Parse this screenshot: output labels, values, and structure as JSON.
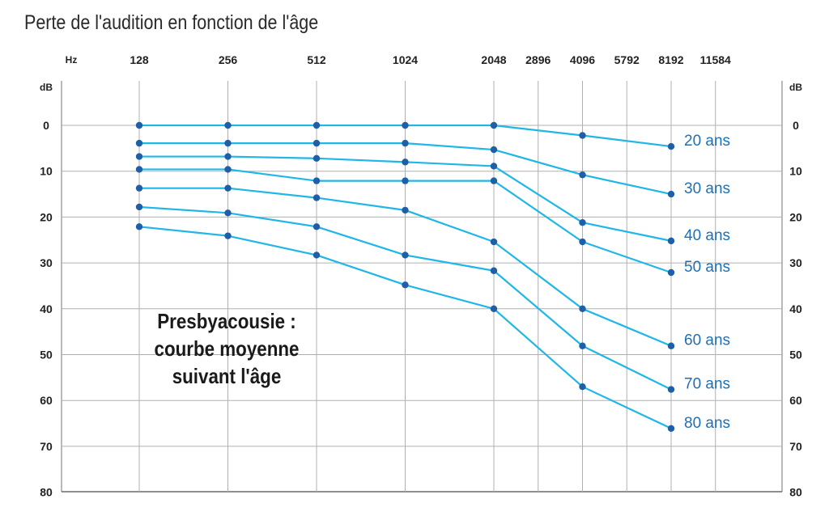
{
  "chart_data": {
    "type": "line",
    "title": "Perte de l'audition en fonction de l'âge",
    "x_unit": "Hz",
    "y_unit": "dB",
    "x": [
      128,
      256,
      512,
      1024,
      2048,
      2896,
      4096,
      5792,
      8192,
      11584
    ],
    "x_tick_labels": [
      "128",
      "256",
      "512",
      "1024",
      "2048",
      "2896",
      "4096",
      "5792",
      "8192",
      "11584"
    ],
    "y_ticks": [
      0,
      10,
      20,
      30,
      40,
      50,
      60,
      70,
      80
    ],
    "ylim": [
      80,
      -5
    ],
    "y_reversed": true,
    "x_scale": "log",
    "grid": true,
    "line_color": "#1fb6e8",
    "point_color": "#1f5fa8",
    "label_color": "#1f6fb5",
    "series": [
      {
        "name": "20 ans",
        "x": [
          128,
          256,
          512,
          1024,
          2048,
          4096,
          8192
        ],
        "values": [
          0,
          0,
          0,
          0,
          0,
          2.2,
          4.6
        ]
      },
      {
        "name": "30 ans",
        "x": [
          128,
          256,
          512,
          1024,
          2048,
          4096,
          8192
        ],
        "values": [
          3.9,
          3.9,
          3.9,
          3.9,
          5.3,
          10.8,
          15
        ]
      },
      {
        "name": "40 ans",
        "x": [
          128,
          256,
          512,
          1024,
          2048,
          4096,
          8192
        ],
        "values": [
          6.8,
          6.8,
          7.2,
          8,
          8.9,
          21.2,
          25.2
        ]
      },
      {
        "name": "50 ans",
        "x": [
          128,
          256,
          512,
          1024,
          2048,
          4096,
          8192
        ],
        "values": [
          9.6,
          9.6,
          12.1,
          12.1,
          12.1,
          25.4,
          32.1
        ]
      },
      {
        "name": "60 ans",
        "x": [
          128,
          256,
          512,
          1024,
          2048,
          4096,
          8192
        ],
        "values": [
          13.7,
          13.7,
          15.8,
          18.5,
          25.4,
          40,
          48.1
        ]
      },
      {
        "name": "70 ans",
        "x": [
          128,
          256,
          512,
          1024,
          2048,
          4096,
          8192
        ],
        "values": [
          17.8,
          19.1,
          22.1,
          28.3,
          31.7,
          48.1,
          57.6
        ]
      },
      {
        "name": "80 ans",
        "x": [
          128,
          256,
          512,
          1024,
          2048,
          4096,
          8192
        ],
        "values": [
          22.1,
          24.1,
          28.3,
          34.8,
          40,
          57,
          66.1
        ]
      }
    ]
  },
  "annotation": {
    "line1": "Presbyacousie :",
    "line2": "courbe moyenne",
    "line3": "suivant l'âge"
  }
}
